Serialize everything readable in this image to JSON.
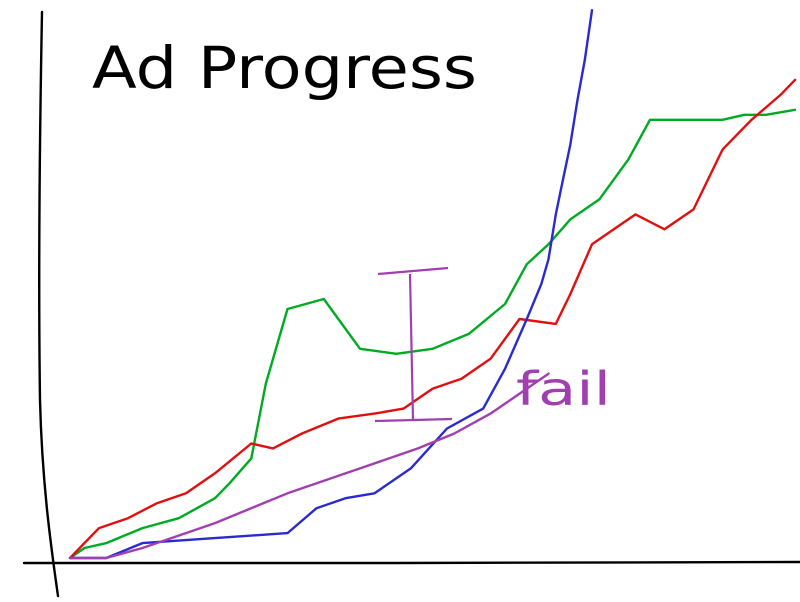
{
  "chart_data": {
    "type": "line",
    "title": "Ad Progress",
    "xlabel": "",
    "ylabel": "",
    "xlim": [
      0,
      100
    ],
    "ylim": [
      0,
      100
    ],
    "grid": false,
    "series": [
      {
        "color": "#00aa22",
        "x": [
          0,
          2,
          5,
          10,
          15,
          20,
          22,
          25,
          27,
          30,
          35,
          40,
          45,
          50,
          55,
          60,
          63,
          66,
          69,
          73,
          77,
          80,
          85,
          90,
          93,
          96,
          100
        ],
        "y": [
          0,
          2,
          3,
          6,
          8,
          12,
          15,
          20,
          35,
          50,
          52,
          42,
          41,
          42,
          45,
          51,
          59,
          63,
          68,
          72,
          80,
          88,
          88,
          88,
          89,
          89,
          90
        ]
      },
      {
        "color": "#e01010",
        "x": [
          0,
          4,
          8,
          12,
          16,
          20,
          25,
          28,
          32,
          37,
          42,
          46,
          50,
          54,
          58,
          62,
          67,
          69,
          72,
          75,
          78,
          82,
          86,
          90,
          94,
          98,
          100
        ],
        "y": [
          0,
          6,
          8,
          11,
          13,
          17,
          23,
          22,
          25,
          28,
          29,
          30,
          34,
          36,
          40,
          48,
          47,
          53,
          63,
          66,
          69,
          66,
          70,
          82,
          88,
          93,
          96
        ]
      },
      {
        "color": "#2a2ad0",
        "x": [
          0,
          5,
          10,
          20,
          30,
          34,
          38,
          42,
          47,
          52,
          57,
          60,
          63,
          65,
          66,
          67,
          68,
          69,
          70,
          71,
          72
        ],
        "y": [
          0,
          0,
          3,
          4,
          5,
          10,
          12,
          13,
          18,
          26,
          30,
          38,
          48,
          55,
          60,
          69,
          76,
          83,
          92,
          100,
          110
        ]
      },
      {
        "color": "#a040b0",
        "x": [
          0,
          5,
          10,
          20,
          30,
          40,
          48,
          53,
          58,
          62,
          66
        ],
        "y": [
          0,
          0,
          2,
          7,
          13,
          18,
          22,
          25,
          29,
          33,
          37
        ]
      }
    ],
    "annotations": [
      {
        "text": "fail",
        "color": "#a040b0"
      }
    ]
  }
}
